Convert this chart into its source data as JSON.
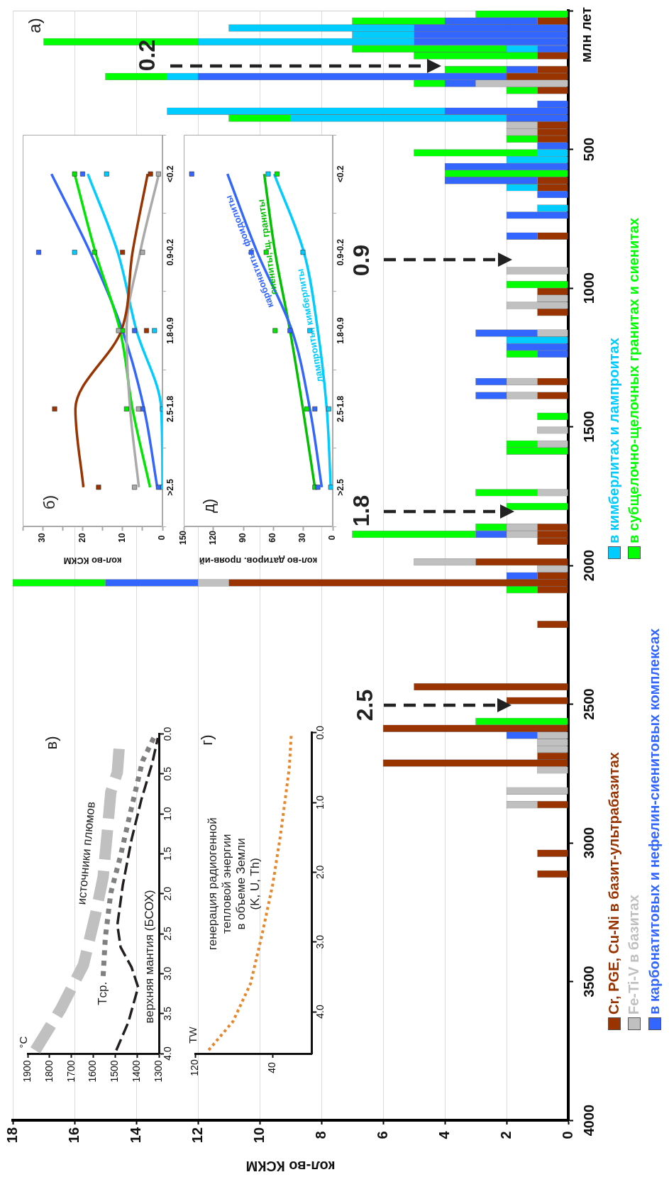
{
  "chart_data": [
    {
      "type": "bar",
      "orientation": "horizontal",
      "stacked": true,
      "grid": "x",
      "legend": "bottom",
      "xlabel": "кол-во КСКМ",
      "ylabel": "млн лет",
      "xlim": [
        18,
        0
      ],
      "xticks": [
        0,
        2,
        4,
        6,
        8,
        10,
        12,
        14,
        16,
        18
      ],
      "ylim": [
        4000,
        0
      ],
      "yticks": [
        4000,
        3500,
        3000,
        2500,
        2000,
        1500,
        1000,
        500,
        {
          "value": 0,
          "label": null
        }
      ],
      "x": [
        12.5,
        37.5,
        62.5,
        87.5,
        112.5,
        137.5,
        162.5,
        212.5,
        237.5,
        262.5,
        287.5,
        337.5,
        362.5,
        387.5,
        412.5,
        437.5,
        462.5,
        487.5,
        512.5,
        537.5,
        562.5,
        587.5,
        612.5,
        637.5,
        662.5,
        712.5,
        737.5,
        812.5,
        937.5,
        987.5,
        1012.5,
        1037.5,
        1062.5,
        1087.5,
        1162.5,
        1187.5,
        1212.5,
        1237.5,
        1337.5,
        1387.5,
        1462.5,
        1512.5,
        1562.5,
        1587.5,
        1737.5,
        1787.5,
        1862.5,
        1887.5,
        1912.5,
        1987.5,
        2012.5,
        2037.5,
        2062.5,
        2087.5,
        2212.5,
        2437.5,
        2487.5,
        2562.5,
        2587.5,
        2612.5,
        2637.5,
        2662.5,
        2687.5,
        2712.5,
        2737.5,
        2812.5,
        2862.5,
        3037.5,
        3112.5
      ],
      "series": [
        {
          "name": "Cr, PGE, Cu-Ni в базит-ультрабазитах",
          "color": "#993300",
          "values": [
            null,
            1,
            null,
            null,
            null,
            null,
            1,
            1,
            2,
            null,
            1,
            null,
            null,
            null,
            1,
            1,
            1,
            null,
            null,
            null,
            null,
            null,
            1,
            1,
            null,
            null,
            null,
            1,
            null,
            null,
            1,
            null,
            null,
            1,
            null,
            null,
            null,
            null,
            1,
            1,
            null,
            null,
            null,
            null,
            null,
            null,
            1,
            1,
            1,
            3,
            null,
            1,
            11,
            1,
            1,
            5,
            2,
            null,
            6,
            null,
            null,
            null,
            1,
            6,
            null,
            null,
            1,
            1,
            1
          ]
        },
        {
          "name": "Fe-Ti-V в базитах",
          "color": "#c0c0c0",
          "values": [
            null,
            null,
            null,
            null,
            null,
            null,
            null,
            null,
            null,
            3,
            null,
            null,
            null,
            null,
            1,
            1,
            null,
            null,
            null,
            null,
            null,
            null,
            null,
            null,
            null,
            null,
            null,
            null,
            2,
            null,
            null,
            1,
            2,
            null,
            1,
            null,
            null,
            null,
            1,
            1,
            null,
            1,
            1,
            null,
            1,
            null,
            1,
            1,
            null,
            2,
            1,
            null,
            1,
            null,
            null,
            null,
            null,
            null,
            null,
            1,
            1,
            1,
            null,
            null,
            1,
            2,
            1,
            null,
            null
          ]
        },
        {
          "name": "в карбонатитовых и нефелин-сиенитовых комплексах",
          "color": "#3366ff",
          "values": [
            null,
            3,
            5,
            5,
            5,
            1,
            null,
            1,
            10,
            1,
            null,
            1,
            4,
            2,
            null,
            null,
            null,
            1,
            null,
            null,
            4,
            null,
            3,
            null,
            1,
            null,
            2,
            1,
            null,
            null,
            null,
            null,
            null,
            null,
            2,
            null,
            2,
            1,
            1,
            1,
            null,
            null,
            null,
            null,
            null,
            null,
            null,
            1,
            null,
            null,
            null,
            1,
            3,
            null,
            null,
            null,
            null,
            null,
            null,
            1,
            null,
            null,
            null,
            null,
            null,
            null,
            null,
            null,
            null
          ]
        },
        {
          "name": "в кимберлитах и лампроитах",
          "color": "#00ccff",
          "values": [
            null,
            null,
            6,
            2,
            7,
            1,
            null,
            null,
            1,
            null,
            null,
            null,
            9,
            7,
            null,
            null,
            null,
            null,
            1,
            2,
            null,
            null,
            null,
            1,
            null,
            1,
            null,
            null,
            null,
            null,
            null,
            null,
            null,
            null,
            null,
            2,
            null,
            null,
            null,
            null,
            null,
            null,
            null,
            null,
            null,
            null,
            null,
            null,
            null,
            null,
            null,
            null,
            null,
            null,
            null,
            null,
            null,
            null,
            null,
            null,
            null,
            null,
            null,
            null,
            null,
            null,
            null,
            null,
            null
          ]
        },
        {
          "name": "в субщелочно-щелочных гранитах и сиенитах",
          "color": "#00ff00",
          "values": [
            3,
            3,
            null,
            null,
            5,
            5,
            4,
            2,
            2,
            1,
            1,
            null,
            null,
            2,
            null,
            null,
            1,
            null,
            4,
            null,
            null,
            4,
            null,
            null,
            null,
            null,
            null,
            null,
            null,
            2,
            null,
            null,
            null,
            null,
            null,
            null,
            null,
            1,
            null,
            null,
            1,
            null,
            1,
            2,
            2,
            2,
            1,
            4,
            null,
            null,
            null,
            null,
            3,
            1,
            null,
            null,
            null,
            3,
            null,
            null,
            null,
            null,
            null,
            null,
            null,
            null,
            null,
            null,
            null
          ]
        }
      ],
      "annotations": [
        "а)",
        "0.2",
        "0.9",
        "1.8",
        "2.5"
      ]
    },
    {
      "type": "line",
      "orientation": "horizontal",
      "xlabel": "кол-во КСКМ",
      "categories": [
        "<0.2",
        "0.9-0.2",
        "1.8-0.9",
        "2.5-1.8",
        ">2.5"
      ],
      "xlim": [
        35,
        0
      ],
      "xticks": [
        0,
        {
          "value": 5,
          "label": null
        },
        10,
        {
          "value": 15,
          "label": null
        },
        20,
        {
          "value": 25,
          "label": null
        },
        30,
        {
          "value": 35,
          "label": null
        }
      ],
      "series": [
        {
          "color": "#993300",
          "values": [
            3.7,
            7.5,
            10.3,
            21.8,
            19.8
          ]
        },
        {
          "color": "#aaaaaa",
          "values": [
            0.9,
            5.6,
            9.0,
            8.1,
            5.9
          ]
        },
        {
          "color": "#00e600",
          "values": [
            22,
            16.8,
            10.6,
            7.5,
            3.1
          ]
        },
        {
          "color": "#3366ff",
          "values": [
            27.8,
            18.1,
            10.0,
            4.6,
            1.3
          ]
        },
        {
          "color": "#00ccff",
          "values": [
            18.7,
            11.2,
            6.5,
            0.3,
            0
          ]
        },
        {
          "type": "scatter",
          "marker": "square",
          "color": "#993300",
          "x": [
            "<0.2",
            "0.9-0.2",
            "1.8-0.9",
            "2.5-1.8",
            ">2.5"
          ],
          "values": [
            3,
            10,
            4,
            27,
            16
          ]
        },
        {
          "type": "scatter",
          "marker": "square",
          "color": "#aaaaaa",
          "x": [
            "<0.2",
            "0.9-0.2",
            "1.8-0.9",
            "2.5-1.8",
            ">2.5"
          ],
          "values": [
            1,
            5,
            11,
            6,
            7
          ]
        },
        {
          "type": "scatter",
          "marker": "square",
          "color": "#00e600",
          "x": [
            "<0.2",
            "0.9-0.2",
            "1.8-0.9",
            "2.5-1.8",
            ">2.5"
          ],
          "values": [
            22,
            17,
            10,
            9,
            null
          ]
        },
        {
          "type": "scatter",
          "marker": "square",
          "color": "#3366ff",
          "x": [
            "<0.2",
            "0.9-0.2",
            "1.8-0.9",
            "2.5-1.8",
            ">2.5"
          ],
          "values": [
            20,
            31,
            7,
            5,
            1
          ]
        },
        {
          "type": "scatter",
          "marker": "square",
          "color": "#00ccff",
          "x": [
            "<0.2",
            "0.9-0.2",
            "1.8-0.9",
            "2.5-1.8",
            ">2.5"
          ],
          "values": [
            14,
            22,
            2,
            0,
            0
          ]
        }
      ],
      "annotations": [
        "б)"
      ]
    },
    {
      "type": "line",
      "orientation": "horizontal",
      "xlabel": "кол-во датиров. прояв-ий",
      "categories": [
        "<0.2",
        "0.9-0.2",
        "1.8-0.9",
        "2.5-1.8",
        ">2.5"
      ],
      "xlim": [
        150,
        0
      ],
      "xticks": [
        0,
        30,
        60,
        90,
        120,
        150
      ],
      "series": [
        {
          "type": "scatter",
          "marker": "square",
          "color": "#3366ff",
          "x": [
            "<0.2",
            "0.9-0.2",
            "1.8-0.9",
            "2.5-1.8",
            ">2.5"
          ],
          "values": [
            142,
            82,
            43,
            18,
            15
          ]
        },
        {
          "type": "scatter",
          "marker": "square",
          "color": "#00e600",
          "x": [
            "<0.2",
            "0.9-0.2",
            "1.8-0.9",
            "2.5-1.8",
            ">2.5"
          ],
          "values": [
            56,
            67,
            58,
            26,
            18
          ]
        },
        {
          "type": "scatter",
          "marker": "square",
          "color": "#00ccff",
          "x": [
            "<0.2",
            "0.9-0.2",
            "1.8-0.9",
            "2.5-1.8",
            ">2.5"
          ],
          "values": [
            65,
            30,
            23,
            4,
            2
          ]
        },
        {
          "name": "карбонатиты, фоидолиты",
          "color": "#3366ff",
          "values": [
            106,
            76,
            41,
            23,
            11
          ]
        },
        {
          "name": "сиениты, щ. граниты",
          "color": "#00c000",
          "values": [
            69,
            58,
            43,
            30,
            18
          ]
        },
        {
          "name": "лампроиты, кимберлиты",
          "color": "#00ccff",
          "values": [
            59,
            29,
            15,
            6,
            2
          ]
        }
      ],
      "annotations": [
        "д)"
      ]
    },
    {
      "type": "line",
      "xlim": [
        1900,
        1300
      ],
      "xticks": [
        1300,
        1400,
        1500,
        1600,
        1700,
        1800,
        1900
      ],
      "ylim": [
        4,
        0
      ],
      "yticks": [
        {
          "value": 4,
          "label": "4.0"
        },
        3.5,
        {
          "value": 3,
          "label": "3.0"
        },
        2.5,
        {
          "value": 2,
          "label": "2.0"
        },
        1.5,
        {
          "value": 1,
          "label": "1.0"
        },
        0.5,
        {
          "value": 0,
          "label": "0.0"
        }
      ],
      "series": [
        {
          "name": "источники плюмов",
          "color": "#c0c0c0",
          "line_style": "dashed",
          "x": [
            1865,
            1750,
            1645,
            1590,
            1555,
            1535,
            1520,
            1490,
            1480
          ],
          "values": [
            3.96,
            3.45,
            2.89,
            2.26,
            1.79,
            1.2,
            0.73,
            0.48,
            0.11
          ]
        },
        {
          "name": "Tср.",
          "color": "#808080",
          "line_style": "dotted",
          "x": [
            1555,
            1545,
            1520,
            1475,
            1430,
            1375,
            1315
          ],
          "values": [
            3.03,
            2.55,
            1.99,
            1.52,
            0.98,
            0.34,
            0.0
          ]
        },
        {
          "name": "верхняя мантия (БСОХ)",
          "color": "#231f20",
          "line_style": "dashed",
          "x": [
            1495,
            1440,
            1395,
            1425,
            1475,
            1490,
            1465,
            1425,
            1380,
            1330,
            1305
          ],
          "values": [
            3.96,
            3.61,
            3.17,
            2.92,
            2.67,
            2.39,
            1.89,
            1.32,
            0.82,
            0.36,
            0.05
          ]
        }
      ],
      "annotations": [
        "в)",
        "°C"
      ]
    },
    {
      "type": "line",
      "xlim": [
        120,
        0
      ],
      "xticks": [
        120,
        40
      ],
      "ylim": [
        4.6,
        0
      ],
      "yticks": [
        {
          "value": 4,
          "label": "4.0"
        },
        {
          "value": 3,
          "label": "3.0"
        },
        {
          "value": 2,
          "label": "2.0"
        },
        {
          "value": 1,
          "label": "1.0"
        },
        {
          "value": 0,
          "label": "0.0"
        }
      ],
      "series": [
        {
          "name": "генерация радиогенной\nтепловой энергии\nв объеме Земли\n(K, U, Th)",
          "color": "#e8862a",
          "line_style": "dotted",
          "x": [
            106,
            81,
            63,
            51,
            40,
            32,
            27,
            23,
            21
          ],
          "values": [
            4.55,
            4.14,
            3.6,
            2.89,
            2.17,
            1.46,
            0.93,
            0.5,
            0.03
          ]
        }
      ],
      "annotations": [
        "г)",
        "TW"
      ]
    }
  ]
}
